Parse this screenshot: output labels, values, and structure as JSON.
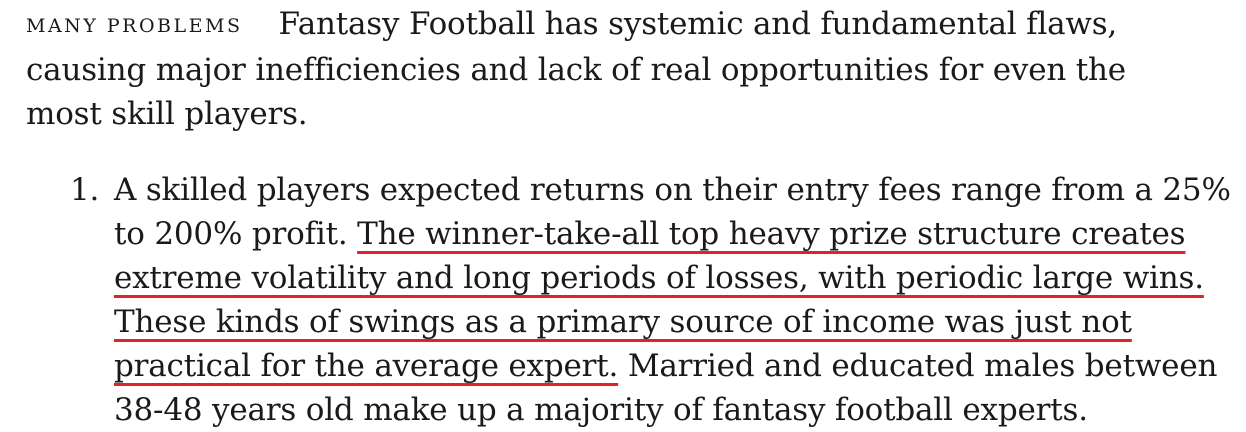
{
  "intro": {
    "lead_in": "MANY PROBLEMS",
    "text": "Fantasy Football has systemic and fundamental flaws, causing major inefficiencies and lack of real opportunities for even the most skill players."
  },
  "list": {
    "items": [
      {
        "marker": "1.",
        "lines": [
          {
            "plain_before": "A skilled players expected returns on their entry fees range from a 25%",
            "highlight": "",
            "plain_after": ""
          },
          {
            "plain_before": "to 200% profit. ",
            "highlight": "The winner-take-all top heavy prize structure creates",
            "plain_after": ""
          },
          {
            "plain_before": "",
            "highlight": "extreme volatility and long periods of losses, with periodic large wins.",
            "plain_after": ""
          },
          {
            "plain_before": "",
            "highlight": "These kinds of swings as a primary source of income was just not",
            "plain_after": ""
          },
          {
            "plain_before": "",
            "highlight": "practical for the average expert.",
            "plain_after": " Married and educated males between"
          },
          {
            "plain_before": "38-48 years old make up a majority of fantasy football experts.",
            "highlight": "",
            "plain_after": ""
          }
        ]
      }
    ]
  },
  "colors": {
    "text": "#1a1a1a",
    "highlight_underline": "#e0232a"
  }
}
